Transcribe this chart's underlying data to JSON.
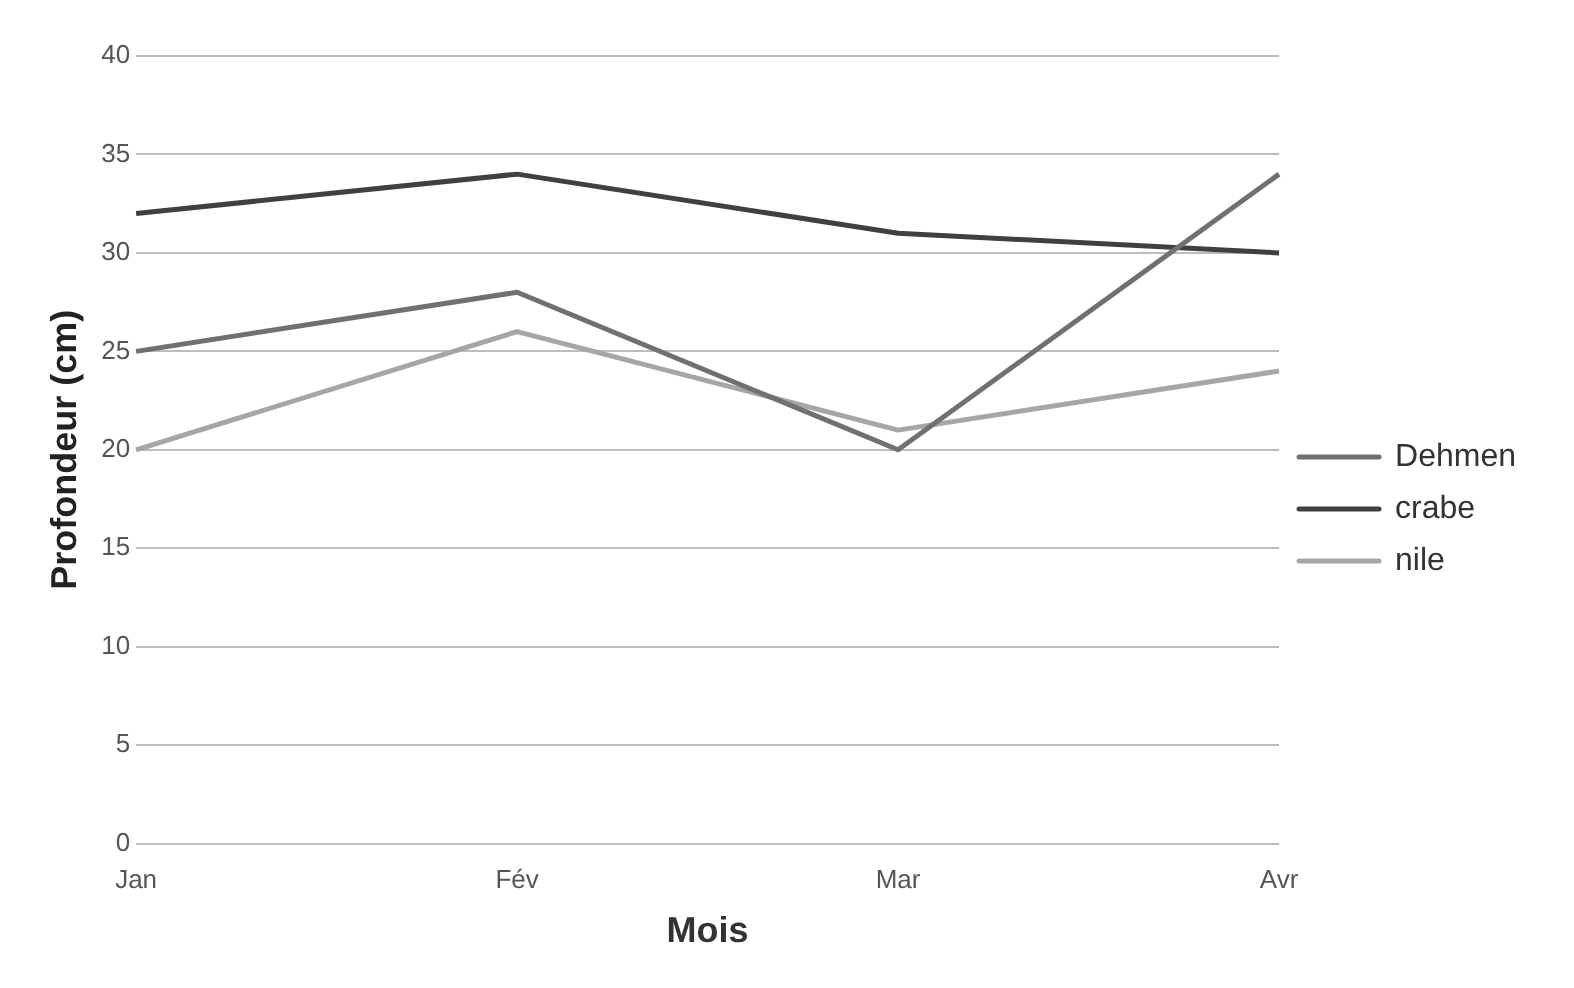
{
  "chart_data": {
    "type": "line",
    "xlabel": "Mois",
    "ylabel": "Profondeur (cm)",
    "categories": [
      "Jan",
      "Fév",
      "Mar",
      "Avr"
    ],
    "series": [
      {
        "name": "Dehmen",
        "color": "#707070",
        "values": [
          25,
          28,
          20,
          34
        ]
      },
      {
        "name": "crabe",
        "color": "#404040",
        "values": [
          32,
          34,
          31,
          30
        ]
      },
      {
        "name": "nile",
        "color": "#a6a6a6",
        "values": [
          20,
          26,
          21,
          24
        ]
      }
    ],
    "ylim": [
      0,
      40
    ],
    "yticks": [
      0,
      5,
      10,
      15,
      20,
      25,
      30,
      35,
      40
    ],
    "grid": "y",
    "legend": "right",
    "marker": "none",
    "line_style": "solid"
  }
}
